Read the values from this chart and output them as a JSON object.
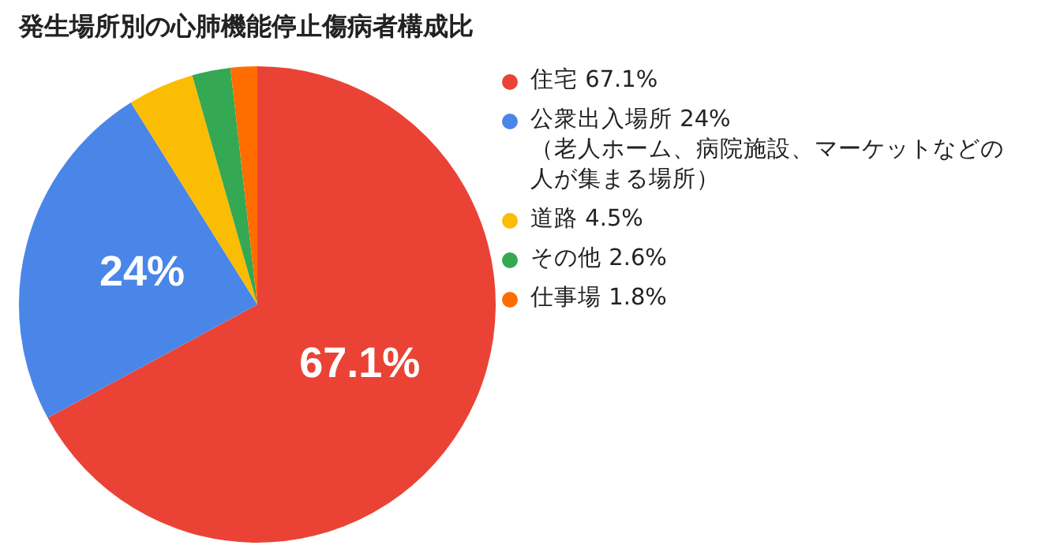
{
  "chart_data": {
    "type": "pie",
    "title": "発生場所別の心肺機能停止傷病者構成比",
    "categories": [
      "住宅 67.1%",
      "公衆出入場所 24%（老人ホーム、病院施設、マーケットなどの人が集まる場所）",
      "道路 4.5%",
      "その他 2.6%",
      "仕事場 1.8%"
    ],
    "values": [
      67.1,
      24,
      4.5,
      2.6,
      1.8
    ],
    "colors": [
      "#ea4335",
      "#4a86e8",
      "#fbbc04",
      "#34a853",
      "#ff6d01"
    ],
    "value_labels": [
      "67.1%",
      "24%",
      null,
      null,
      null
    ],
    "legend": "right"
  }
}
